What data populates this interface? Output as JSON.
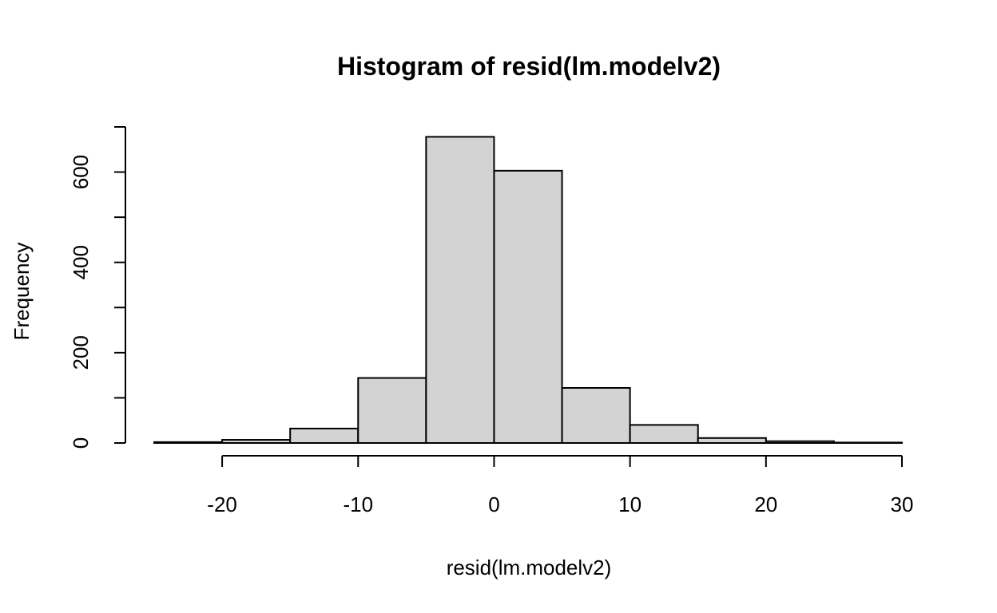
{
  "chart_data": {
    "type": "bar",
    "title": "Histogram of resid(lm.modelv2)",
    "xlabel": "resid(lm.modelv2)",
    "ylabel": "Frequency",
    "bins": [
      {
        "start": -25,
        "end": -20,
        "count": 2
      },
      {
        "start": -20,
        "end": -15,
        "count": 7
      },
      {
        "start": -15,
        "end": -10,
        "count": 32
      },
      {
        "start": -10,
        "end": -5,
        "count": 144
      },
      {
        "start": -5,
        "end": 0,
        "count": 678
      },
      {
        "start": 0,
        "end": 5,
        "count": 603
      },
      {
        "start": 5,
        "end": 10,
        "count": 122
      },
      {
        "start": 10,
        "end": 15,
        "count": 40
      },
      {
        "start": 15,
        "end": 20,
        "count": 11
      },
      {
        "start": 20,
        "end": 25,
        "count": 4
      },
      {
        "start": 25,
        "end": 30,
        "count": 1
      }
    ],
    "xlim": [
      -25,
      30
    ],
    "ylim": [
      0,
      700
    ],
    "x_ticks": [
      -20,
      -10,
      0,
      10,
      20,
      30
    ],
    "y_ticks": [
      0,
      100,
      200,
      300,
      400,
      500,
      600,
      700
    ],
    "y_tick_labels": [
      "0",
      "",
      "200",
      "",
      "400",
      "",
      "600",
      ""
    ],
    "bar_fill": "#d3d3d3",
    "bar_stroke": "#000000",
    "grid": false
  }
}
